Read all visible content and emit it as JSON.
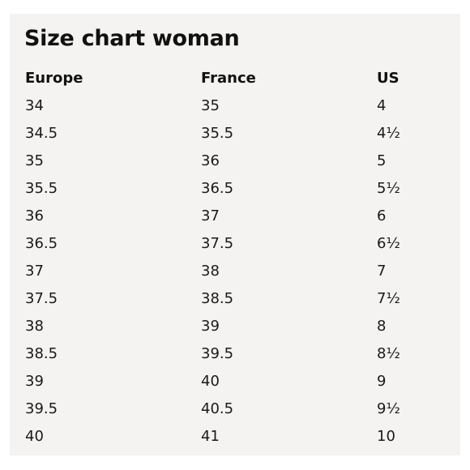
{
  "title": "Size chart woman",
  "table": {
    "headers": [
      "Europe",
      "France",
      "US"
    ],
    "rows": [
      [
        "34",
        "35",
        "4"
      ],
      [
        "34.5",
        "35.5",
        "4½"
      ],
      [
        "35",
        "36",
        "5"
      ],
      [
        "35.5",
        "36.5",
        "5½"
      ],
      [
        "36",
        "37",
        "6"
      ],
      [
        "36.5",
        "37.5",
        "6½"
      ],
      [
        "37",
        "38",
        "7"
      ],
      [
        "37.5",
        "38.5",
        "7½"
      ],
      [
        "38",
        "39",
        "8"
      ],
      [
        "38.5",
        "39.5",
        "8½"
      ],
      [
        "39",
        "40",
        "9"
      ],
      [
        "39.5",
        "40.5",
        "9½"
      ],
      [
        "40",
        "41",
        "10"
      ]
    ]
  },
  "colors": {
    "panel_background": "#f4f3f2",
    "text": "#111111"
  }
}
